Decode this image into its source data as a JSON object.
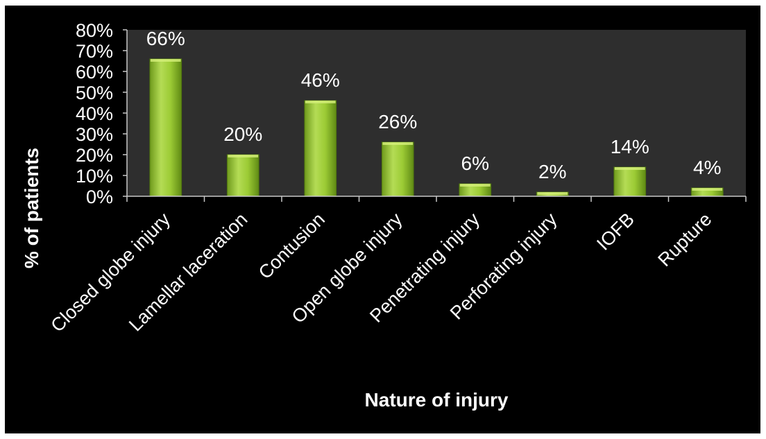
{
  "chart_data": {
    "type": "bar",
    "title": "",
    "xlabel": "Nature of injury",
    "ylabel": "% of patients",
    "categories": [
      "Closed globe injury",
      "Lamellar laceration",
      "Contusion",
      "Open globe injury",
      "Penetrating  injury",
      "Perforating  injury",
      "IOFB",
      "Rupture"
    ],
    "values": [
      66,
      20,
      46,
      26,
      6,
      2,
      14,
      4
    ],
    "data_labels": [
      "66%",
      "20%",
      "46%",
      "26%",
      "6%",
      "2%",
      "14%",
      "4%"
    ],
    "ylim": [
      0,
      80
    ],
    "yticks": [
      "0%",
      "10%",
      "20%",
      "30%",
      "40%",
      "50%",
      "60%",
      "70%",
      "80%"
    ],
    "grid": false,
    "legend": "none",
    "colors": {
      "background": "#000000",
      "plot_area": "#2e2e2e",
      "bar": "#8fbf2a",
      "text": "#ffffff"
    }
  }
}
